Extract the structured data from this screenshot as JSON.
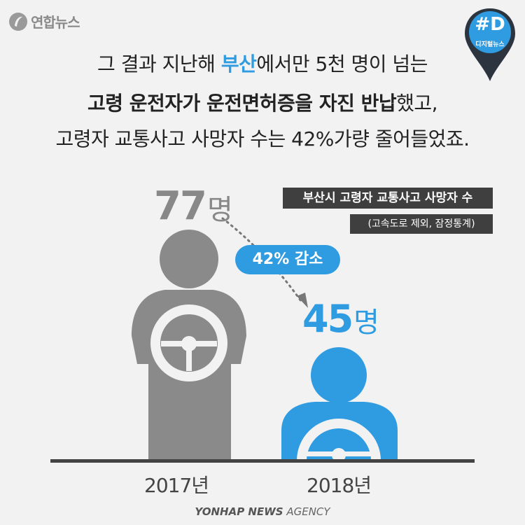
{
  "logo": {
    "text": "연합뉴스",
    "icon": "yonhap-logo-icon"
  },
  "badge": {
    "hash": "#D",
    "sub": "디지털뉴스"
  },
  "headline": {
    "line1_pre": "그 결과 지난해 ",
    "line1_hl": "부산",
    "line1_post": "에서만 5천 명이 넘는",
    "line2_bold": "고령 운전자가 운전면허증을 자진 반납",
    "line2_post": "했고,",
    "line3": "고령자 교통사고 사망자 수는 42%가량 줄어들었죠."
  },
  "chart_info": {
    "title": "부산시 고령자 교통사고 사망자 수",
    "subtitle": "(고속도로 제외, 잠정통계)",
    "change_label": "42% 감소"
  },
  "chart_data": {
    "type": "bar",
    "title": "부산시 고령자 교통사고 사망자 수",
    "subtitle": "(고속도로 제외, 잠정통계)",
    "categories": [
      "2017년",
      "2018년"
    ],
    "values": [
      77,
      45
    ],
    "value_labels": [
      "77",
      "45"
    ],
    "unit": "명",
    "annotation": "42% 감소",
    "colors": [
      "#8a8a8a",
      "#2f9be0"
    ]
  },
  "footer": {
    "brand_bold": "YONHAP NEWS",
    "brand_rest": " AGENCY"
  },
  "colors": {
    "gray": "#8a8a8a",
    "blue": "#2f9be0",
    "dark": "#3f3f3f"
  }
}
